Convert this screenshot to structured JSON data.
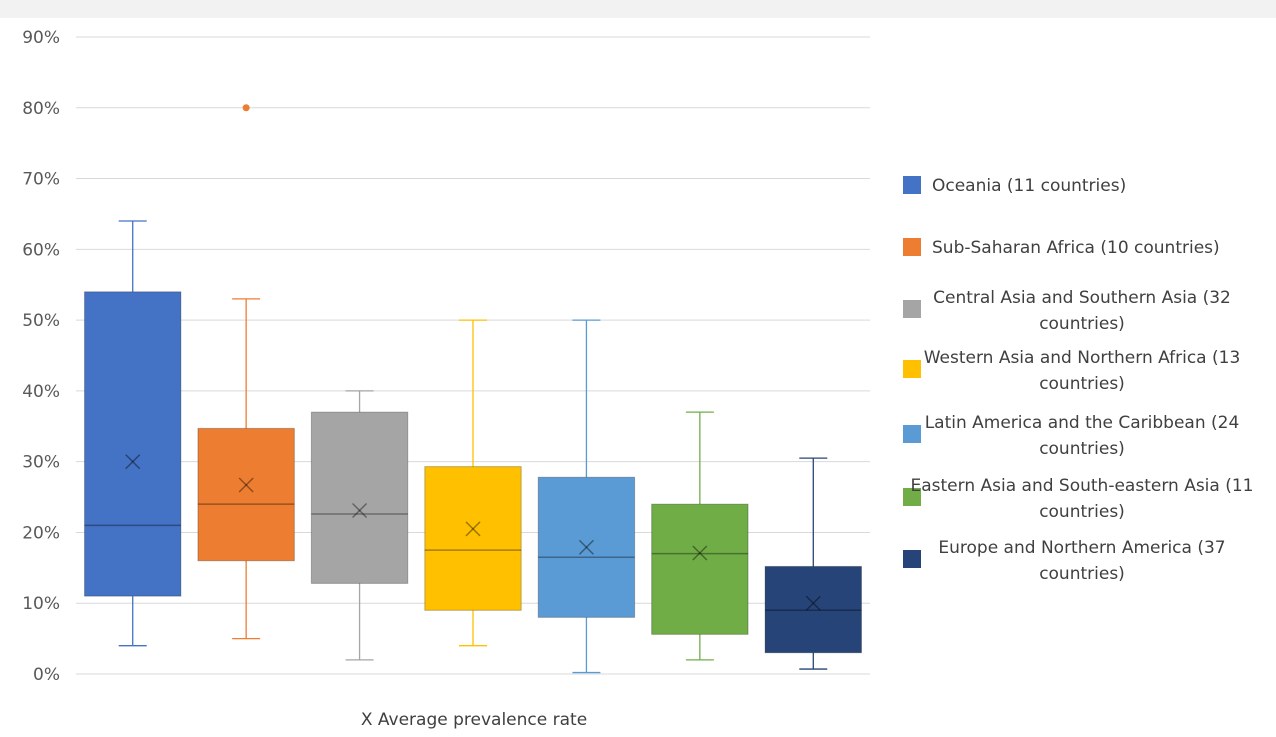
{
  "chart_data": {
    "type": "boxplot",
    "xlabel": "X Average prevalence rate",
    "ylabel": "",
    "ylim": [
      0,
      0.9
    ],
    "yticks": [
      0,
      0.1,
      0.2,
      0.3,
      0.4,
      0.5,
      0.6,
      0.7,
      0.8,
      0.9
    ],
    "ytick_labels": [
      "0%",
      "10%",
      "20%",
      "30%",
      "40%",
      "50%",
      "60%",
      "70%",
      "80%",
      "90%"
    ],
    "grid": true,
    "legend_position": "right",
    "series": [
      {
        "name": "Oceania (11 countries)",
        "color": "#4472c4",
        "min": 0.04,
        "q1": 0.11,
        "median": 0.21,
        "q3": 0.54,
        "max": 0.64,
        "mean": 0.3,
        "outliers": []
      },
      {
        "name": "Sub-Saharan Africa (10 countries)",
        "color": "#ed7d31",
        "min": 0.05,
        "q1": 0.16,
        "median": 0.24,
        "q3": 0.347,
        "max": 0.53,
        "mean": 0.267,
        "outliers": [
          0.8
        ]
      },
      {
        "name": "Central Asia and Southern Asia (32 countries)",
        "color": "#a5a5a5",
        "min": 0.02,
        "q1": 0.128,
        "median": 0.226,
        "q3": 0.37,
        "max": 0.4,
        "mean": 0.231,
        "outliers": []
      },
      {
        "name": "Western Asia and Northern Africa (13 countries)",
        "color": "#ffc000",
        "min": 0.04,
        "q1": 0.09,
        "median": 0.175,
        "q3": 0.293,
        "max": 0.5,
        "mean": 0.205,
        "outliers": []
      },
      {
        "name": "Latin America and the Caribbean (24 countries)",
        "color": "#5b9bd5",
        "min": 0.002,
        "q1": 0.08,
        "median": 0.165,
        "q3": 0.278,
        "max": 0.5,
        "mean": 0.179,
        "outliers": []
      },
      {
        "name": "Eastern Asia and South-eastern Asia (11 countries)",
        "color": "#70ad47",
        "min": 0.02,
        "q1": 0.056,
        "median": 0.17,
        "q3": 0.24,
        "max": 0.37,
        "mean": 0.171,
        "outliers": []
      },
      {
        "name": "Europe and Northern America (37 countries)",
        "color": "#264478",
        "min": 0.007,
        "q1": 0.03,
        "median": 0.09,
        "q3": 0.152,
        "max": 0.305,
        "mean": 0.1,
        "outliers": []
      }
    ]
  }
}
